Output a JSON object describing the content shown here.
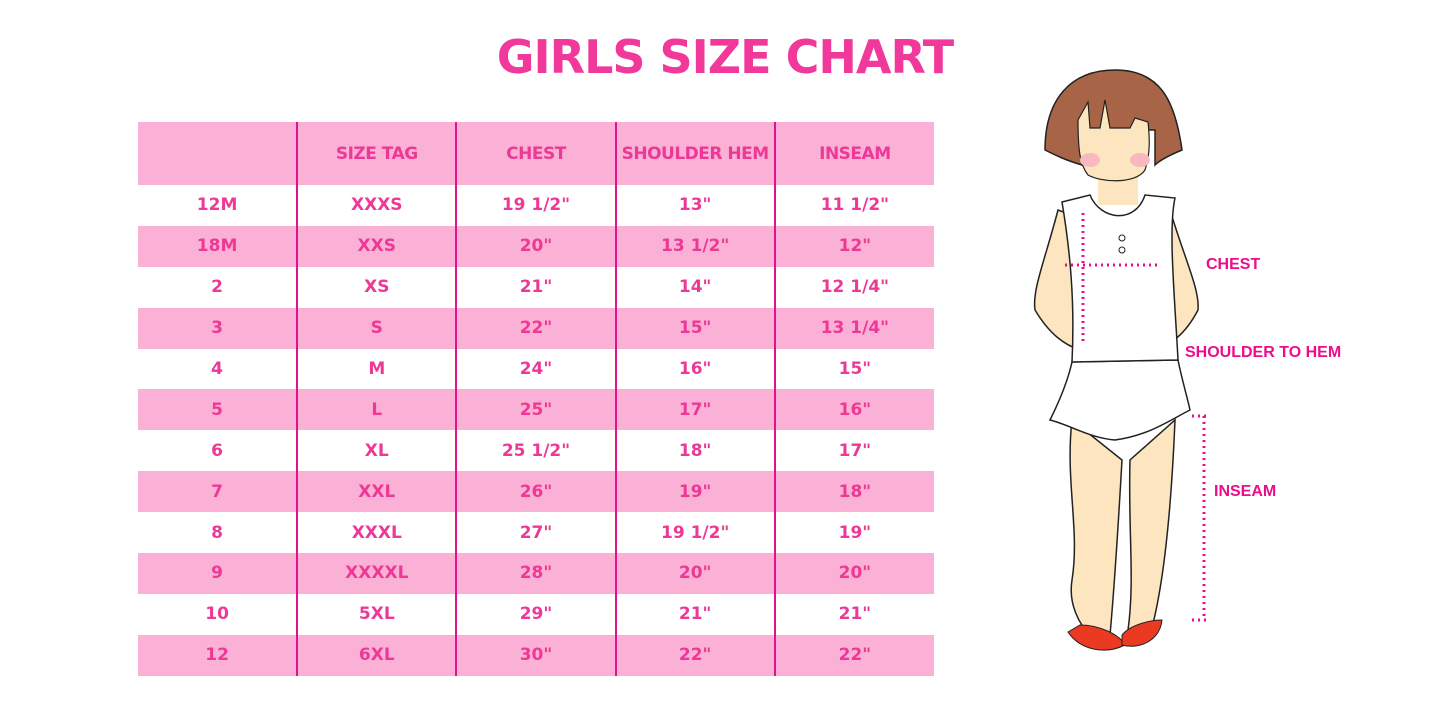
{
  "title": "GIRLS SIZE CHART",
  "table": {
    "headers": [
      "",
      "SIZE TAG",
      "CHEST",
      "SHOULDER HEM",
      "INSEAM"
    ],
    "rows": [
      [
        "12M",
        "XXXS",
        "19 1/2\"",
        "13\"",
        "11 1/2\""
      ],
      [
        "18M",
        "XXS",
        "20\"",
        "13 1/2\"",
        "12\""
      ],
      [
        "2",
        "XS",
        "21\"",
        "14\"",
        "12 1/4\""
      ],
      [
        "3",
        "S",
        "22\"",
        "15\"",
        "13 1/4\""
      ],
      [
        "4",
        "M",
        "24\"",
        "16\"",
        "15\""
      ],
      [
        "5",
        "L",
        "25\"",
        "17\"",
        "16\""
      ],
      [
        "6",
        "XL",
        "25 1/2\"",
        "18\"",
        "17\""
      ],
      [
        "7",
        "XXL",
        "26\"",
        "19\"",
        "18\""
      ],
      [
        "8",
        "XXXL",
        "27\"",
        "19 1/2\"",
        "19\""
      ],
      [
        "9",
        "XXXXL",
        "28\"",
        "20\"",
        "20\""
      ],
      [
        "10",
        "5XL",
        "29\"",
        "21\"",
        "21\""
      ],
      [
        "12",
        "6XL",
        "30\"",
        "22\"",
        "22\""
      ]
    ]
  },
  "figure": {
    "labels": {
      "chest": "CHEST",
      "shoulder_to_hem": "SHOULDER TO HEM",
      "inseam": "INSEAM"
    }
  },
  "colors": {
    "accent": "#f0399a",
    "row_pink": "#fbb0d6",
    "divider": "#e0138c",
    "measure": "#ec0c8c"
  }
}
